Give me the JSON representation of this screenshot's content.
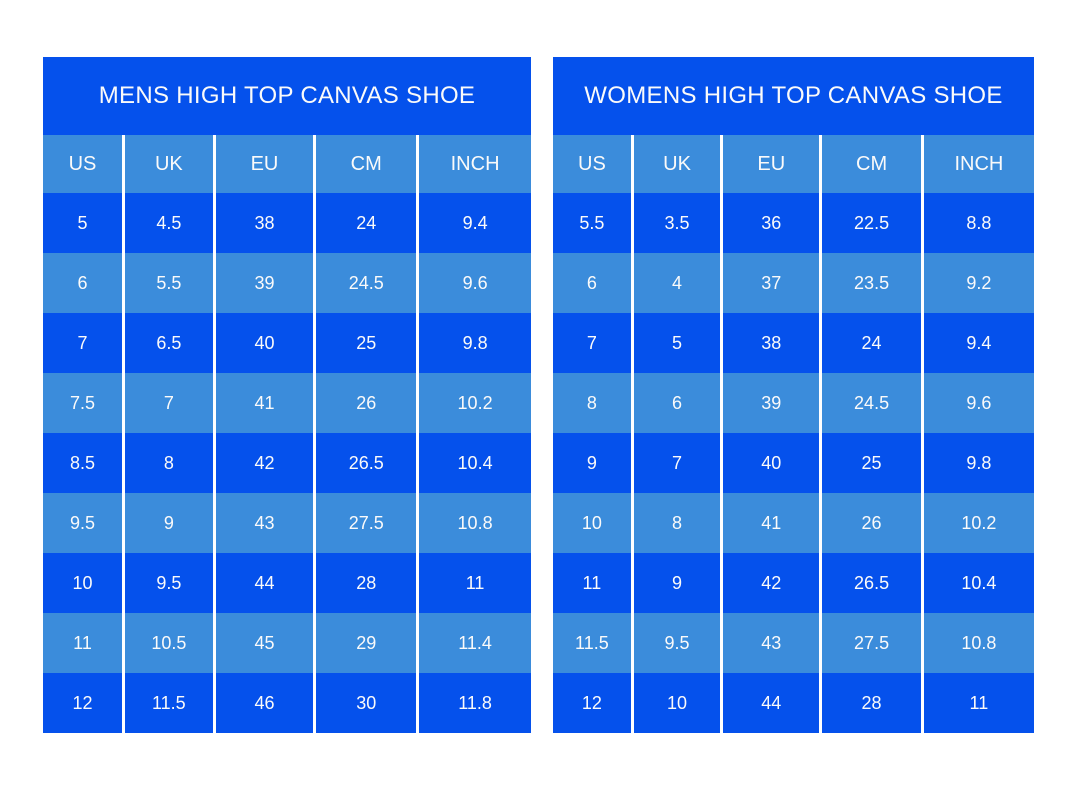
{
  "colors": {
    "dark_blue": "#0551ec",
    "light_blue": "#3b8cdb",
    "text": "#fafafa",
    "divider": "#ffffff",
    "page_background": "#ffffff"
  },
  "chart_data": [
    {
      "type": "table",
      "title": "MENS HIGH TOP CANVAS SHOE",
      "columns": [
        "US",
        "UK",
        "EU",
        "CM",
        "INCH"
      ],
      "rows": [
        [
          "5",
          "4.5",
          "38",
          "24",
          "9.4"
        ],
        [
          "6",
          "5.5",
          "39",
          "24.5",
          "9.6"
        ],
        [
          "7",
          "6.5",
          "40",
          "25",
          "9.8"
        ],
        [
          "7.5",
          "7",
          "41",
          "26",
          "10.2"
        ],
        [
          "8.5",
          "8",
          "42",
          "26.5",
          "10.4"
        ],
        [
          "9.5",
          "9",
          "43",
          "27.5",
          "10.8"
        ],
        [
          "10",
          "9.5",
          "44",
          "28",
          "11"
        ],
        [
          "11",
          "10.5",
          "45",
          "29",
          "11.4"
        ],
        [
          "12",
          "11.5",
          "46",
          "30",
          "11.8"
        ]
      ]
    },
    {
      "type": "table",
      "title": "WOMENS HIGH TOP CANVAS SHOE",
      "columns": [
        "US",
        "UK",
        "EU",
        "CM",
        "INCH"
      ],
      "rows": [
        [
          "5.5",
          "3.5",
          "36",
          "22.5",
          "8.8"
        ],
        [
          "6",
          "4",
          "37",
          "23.5",
          "9.2"
        ],
        [
          "7",
          "5",
          "38",
          "24",
          "9.4"
        ],
        [
          "8",
          "6",
          "39",
          "24.5",
          "9.6"
        ],
        [
          "9",
          "7",
          "40",
          "25",
          "9.8"
        ],
        [
          "10",
          "8",
          "41",
          "26",
          "10.2"
        ],
        [
          "11",
          "9",
          "42",
          "26.5",
          "10.4"
        ],
        [
          "11.5",
          "9.5",
          "43",
          "27.5",
          "10.8"
        ],
        [
          "12",
          "10",
          "44",
          "28",
          "11"
        ]
      ]
    }
  ]
}
